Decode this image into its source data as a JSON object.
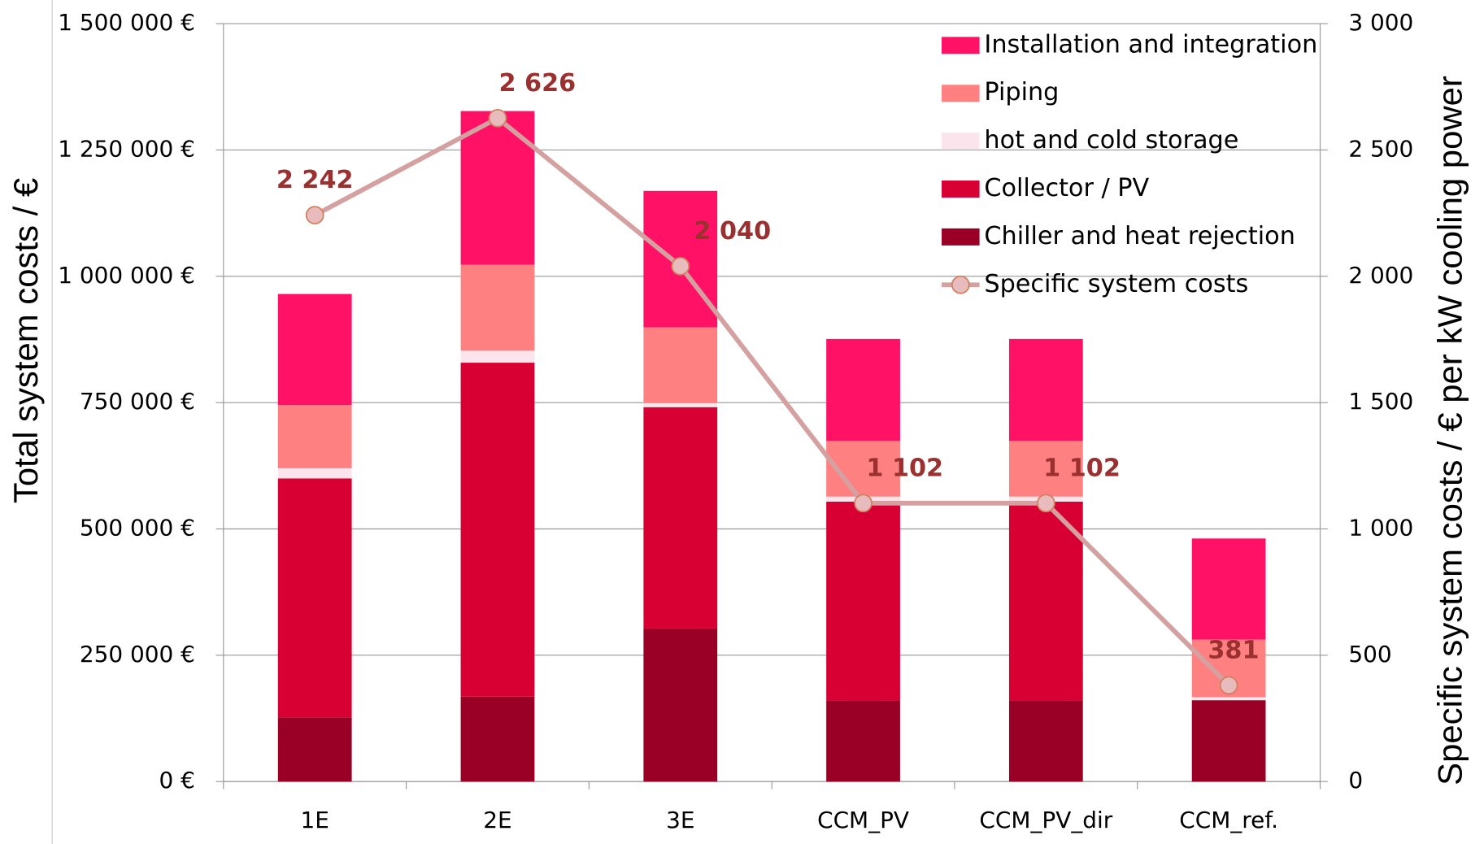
{
  "chart_data": {
    "type": "bar",
    "ylabel": "Total system costs /  €",
    "y2label": "Specific system costs /  € per kW cooling power",
    "categories": [
      "1E",
      "2E",
      "3E",
      "CCM_PV",
      "CCM_PV_dir",
      "CCM_ref."
    ],
    "stacked": true,
    "series": [
      {
        "name": "Chiller and heat rejection",
        "color": "#9a0025",
        "values": [
          127000,
          168000,
          303000,
          161000,
          161000,
          161000
        ]
      },
      {
        "name": "Collector / PV",
        "color": "#d80032",
        "values": [
          473000,
          661000,
          438000,
          393000,
          393000,
          0
        ]
      },
      {
        "name": "hot and cold storage",
        "color": "#fce4ec",
        "values": [
          20000,
          24000,
          8000,
          10000,
          10000,
          6000
        ]
      },
      {
        "name": "Piping",
        "color": "#ff8080",
        "values": [
          125000,
          170000,
          150000,
          110000,
          110000,
          114000
        ]
      },
      {
        "name": "Installation and integration",
        "color": "#ff1166",
        "values": [
          220000,
          304000,
          270000,
          202000,
          202000,
          200000
        ]
      },
      {
        "name": "Specific system costs",
        "type": "line",
        "axis": "y2",
        "color": "#d4a0a0",
        "marker_color": "#e8bcbc",
        "values": [
          2242,
          2626,
          2040,
          1102,
          1102,
          381
        ],
        "value_labels": [
          "2 242",
          "2 626",
          "2 040",
          "1 102",
          "1 102",
          "381"
        ]
      }
    ],
    "ylim": [
      0,
      1500000
    ],
    "yticks": [
      {
        "value": 0,
        "label": "0 €"
      },
      {
        "value": 250000,
        "label": "250 000 €"
      },
      {
        "value": 500000,
        "label": "500 000 €"
      },
      {
        "value": 750000,
        "label": "750 000 €"
      },
      {
        "value": 1000000,
        "label": "1 000 000 €"
      },
      {
        "value": 1250000,
        "label": "1 250 000 €"
      },
      {
        "value": 1500000,
        "label": "1 500 000 €"
      }
    ],
    "y2lim": [
      0,
      3000
    ],
    "y2ticks": [
      0,
      500,
      {
        "value": 1000,
        "label": "1 000"
      },
      {
        "value": 1500,
        "label": "1 500"
      },
      {
        "value": 2000,
        "label": "2 000"
      },
      {
        "value": 2500,
        "label": "2 500"
      },
      {
        "value": 3000,
        "label": "3 000"
      }
    ],
    "grid": true,
    "legend": "upper right"
  }
}
